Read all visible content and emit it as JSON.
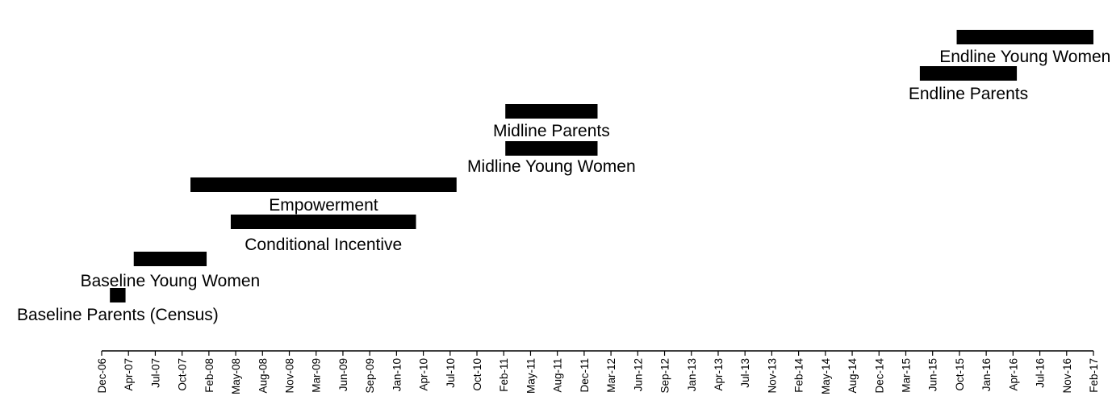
{
  "chart_data": {
    "type": "gantt",
    "title": "",
    "xlabel": "",
    "ylabel": "",
    "x_axis": {
      "type": "date",
      "range": [
        "2006-12-01",
        "2017-02-28"
      ],
      "tick_labels": [
        "Dec-06",
        "Apr-07",
        "Jul-07",
        "Oct-07",
        "Feb-08",
        "May-08",
        "Aug-08",
        "Nov-08",
        "Mar-09",
        "Jun-09",
        "Sep-09",
        "Jan-10",
        "Apr-10",
        "Jul-10",
        "Oct-10",
        "Feb-11",
        "May-11",
        "Aug-11",
        "Dec-11",
        "Mar-12",
        "Jun-12",
        "Sep-12",
        "Jan-13",
        "Apr-13",
        "Jul-13",
        "Nov-13",
        "Feb-14",
        "May-14",
        "Aug-14",
        "Dec-14",
        "Mar-15",
        "Jun-15",
        "Oct-15",
        "Jan-16",
        "Apr-16",
        "Jul-16",
        "Nov-16",
        "Feb-17"
      ]
    },
    "grid": false,
    "legend": "none",
    "bar_color": "#000000",
    "tasks": [
      {
        "name": "Baseline Parents (Census)",
        "start": "2007-01-01",
        "end": "2007-03-01"
      },
      {
        "name": "Baseline Young Women",
        "start": "2007-04-01",
        "end": "2008-01-01"
      },
      {
        "name": "Conditional Incentive",
        "start": "2008-04-01",
        "end": "2010-03-01"
      },
      {
        "name": "Empowerment",
        "start": "2007-11-01",
        "end": "2010-08-01"
      },
      {
        "name": "Midline Young Women",
        "start": "2011-02-01",
        "end": "2012-01-15"
      },
      {
        "name": "Midline Parents",
        "start": "2011-02-01",
        "end": "2012-01-15"
      },
      {
        "name": "Endline Parents",
        "start": "2015-05-15",
        "end": "2016-05-15"
      },
      {
        "name": "Endline Young Women",
        "start": "2015-10-01",
        "end": "2017-02-28"
      }
    ]
  }
}
